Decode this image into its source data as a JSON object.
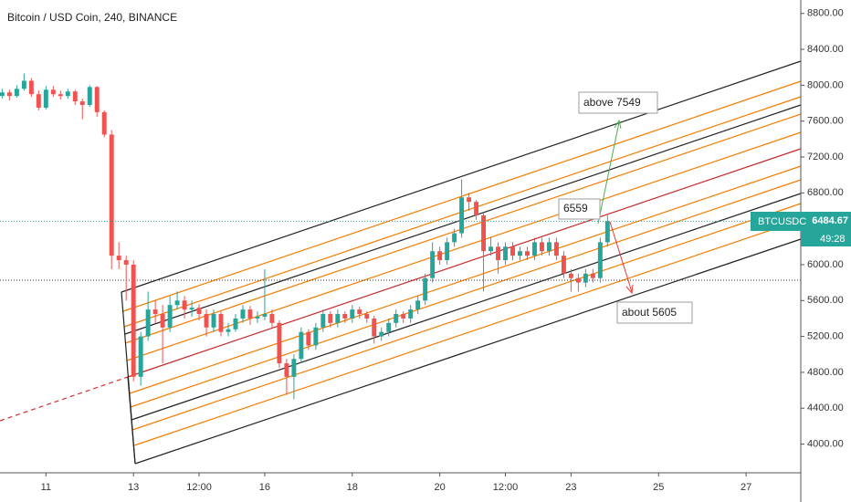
{
  "chart_data": {
    "type": "candlestick",
    "title": "Bitcoin / USD Coin, 240, BINANCE",
    "symbol": "BTCUSDC",
    "countdown": "49:28",
    "annotations": [
      "above 7549",
      "6559",
      "about 5605"
    ],
    "up_color": "#26a69a",
    "down_color": "#ef5350",
    "x": [
      0,
      4,
      8,
      12,
      16,
      20,
      24,
      28,
      32,
      36,
      40,
      44,
      48,
      52,
      56,
      60,
      64,
      68,
      72,
      76,
      80,
      84,
      88,
      92,
      96,
      100,
      104,
      108,
      112,
      116,
      120,
      124,
      128,
      132,
      136,
      140,
      144,
      148,
      152,
      156,
      160,
      164,
      168,
      172,
      176,
      180,
      184,
      188,
      192,
      196,
      200,
      204,
      208,
      212,
      216,
      220,
      224,
      228,
      232,
      236,
      240,
      244,
      248,
      252,
      256,
      260,
      264,
      268,
      272,
      276,
      280,
      284,
      288,
      292,
      296,
      300,
      304,
      308,
      312,
      316,
      320,
      324,
      328,
      332
    ],
    "open": [
      7880,
      7920,
      7880,
      7960,
      8050,
      7900,
      7750,
      7950,
      7900,
      7880,
      7930,
      7820,
      7780,
      7980,
      7700,
      7450,
      6100,
      6050,
      6000,
      4750,
      5200,
      5500,
      5450,
      5300,
      5550,
      5600,
      5500,
      5520,
      5450,
      5300,
      5450,
      5250,
      5280,
      5400,
      5500,
      5400,
      5420,
      5450,
      5350,
      4900,
      4750,
      4950,
      5250,
      5100,
      5300,
      5450,
      5350,
      5450,
      5400,
      5500,
      5450,
      5400,
      5200,
      5250,
      5350,
      5450,
      5400,
      5500,
      5600,
      5850,
      6150,
      6050,
      6250,
      6350,
      6750,
      6700,
      6550,
      6150,
      6200,
      6050,
      6200,
      6100,
      6150,
      6100,
      6250,
      6150,
      6250,
      6100,
      5900,
      5850,
      5800,
      5900,
      5850,
      6250
    ],
    "high": [
      7960,
      7950,
      8000,
      8130,
      8080,
      7940,
      7990,
      7990,
      7940,
      7960,
      7950,
      7850,
      8000,
      7990,
      7720,
      7500,
      6250,
      6100,
      6050,
      5250,
      5700,
      5600,
      5550,
      5650,
      5700,
      5650,
      5600,
      5560,
      5500,
      5500,
      5480,
      5350,
      5450,
      5550,
      5540,
      5480,
      5950,
      5500,
      5380,
      4950,
      5000,
      5300,
      5280,
      5350,
      5500,
      5480,
      5500,
      5480,
      5550,
      5530,
      5480,
      5430,
      5300,
      5400,
      5500,
      5480,
      5550,
      5650,
      5900,
      6250,
      6200,
      6300,
      6400,
      6950,
      6800,
      6720,
      6580,
      6300,
      6250,
      6250,
      6250,
      6200,
      6200,
      6300,
      6300,
      6300,
      6300,
      6150,
      5950,
      5900,
      5950,
      5950,
      6300,
      6550
    ],
    "low": [
      7850,
      7830,
      7860,
      7940,
      7870,
      7720,
      7730,
      7870,
      7840,
      7850,
      7780,
      7620,
      7760,
      7650,
      7420,
      5950,
      5950,
      5600,
      4700,
      4650,
      5150,
      5350,
      4900,
      5250,
      5500,
      5400,
      5420,
      5380,
      5200,
      5250,
      5200,
      5200,
      5250,
      5350,
      5330,
      5350,
      5380,
      5300,
      4850,
      4550,
      4500,
      4900,
      5050,
      5050,
      5250,
      5300,
      5300,
      5350,
      5350,
      5400,
      5350,
      5120,
      5150,
      5200,
      5300,
      5350,
      5350,
      5450,
      5550,
      5800,
      6000,
      6000,
      6200,
      6300,
      6600,
      6500,
      5700,
      6100,
      5900,
      6000,
      6050,
      6050,
      6050,
      6050,
      6100,
      6100,
      6050,
      5850,
      5700,
      5700,
      5750,
      5800,
      5800,
      6200
    ],
    "close": [
      7920,
      7880,
      7960,
      8050,
      7900,
      7750,
      7950,
      7900,
      7880,
      7930,
      7820,
      7780,
      7980,
      7700,
      7450,
      6100,
      6050,
      6000,
      4750,
      5200,
      5500,
      5450,
      5300,
      5550,
      5600,
      5500,
      5520,
      5450,
      5300,
      5450,
      5250,
      5280,
      5400,
      5500,
      5400,
      5420,
      5450,
      5350,
      4900,
      4750,
      4950,
      5250,
      5100,
      5300,
      5450,
      5350,
      5450,
      5400,
      5500,
      5450,
      5400,
      5200,
      5250,
      5350,
      5450,
      5400,
      5500,
      5600,
      5850,
      6150,
      6050,
      6250,
      6350,
      6750,
      6700,
      6550,
      6150,
      6200,
      6050,
      6200,
      6100,
      6150,
      6100,
      6250,
      6150,
      6250,
      6100,
      5900,
      5850,
      5800,
      5900,
      5850,
      6250,
      6484.67
    ],
    "xlim": [
      -1.2,
      438
    ],
    "xticks": [
      {
        "value": 24,
        "label": "11"
      },
      {
        "value": 72,
        "label": "13"
      },
      {
        "value": 108,
        "label": "12:00"
      },
      {
        "value": 144,
        "label": "16"
      },
      {
        "value": 192,
        "label": "18"
      },
      {
        "value": 240,
        "label": "20"
      },
      {
        "value": 276,
        "label": "12:00"
      },
      {
        "value": 312,
        "label": "23"
      },
      {
        "value": 360,
        "label": "25"
      },
      {
        "value": 408,
        "label": "27"
      }
    ],
    "ylim": [
      3680,
      8950
    ],
    "yticks": [
      {
        "value": 4000,
        "label": "4000.00"
      },
      {
        "value": 4400,
        "label": "4400.00"
      },
      {
        "value": 4800,
        "label": "4800.00"
      },
      {
        "value": 5200,
        "label": "5200.00"
      },
      {
        "value": 5600,
        "label": "5600.00"
      },
      {
        "value": 6000,
        "label": "6000.00"
      },
      {
        "value": 6800,
        "label": "6800.00"
      },
      {
        "value": 7200,
        "label": "7200.00"
      },
      {
        "value": 7600,
        "label": "7600.00"
      },
      {
        "value": 8000,
        "label": "8000.00"
      },
      {
        "value": 8400,
        "label": "8400.00"
      },
      {
        "value": 8800,
        "label": "8800.00"
      }
    ],
    "grid": false
  }
}
